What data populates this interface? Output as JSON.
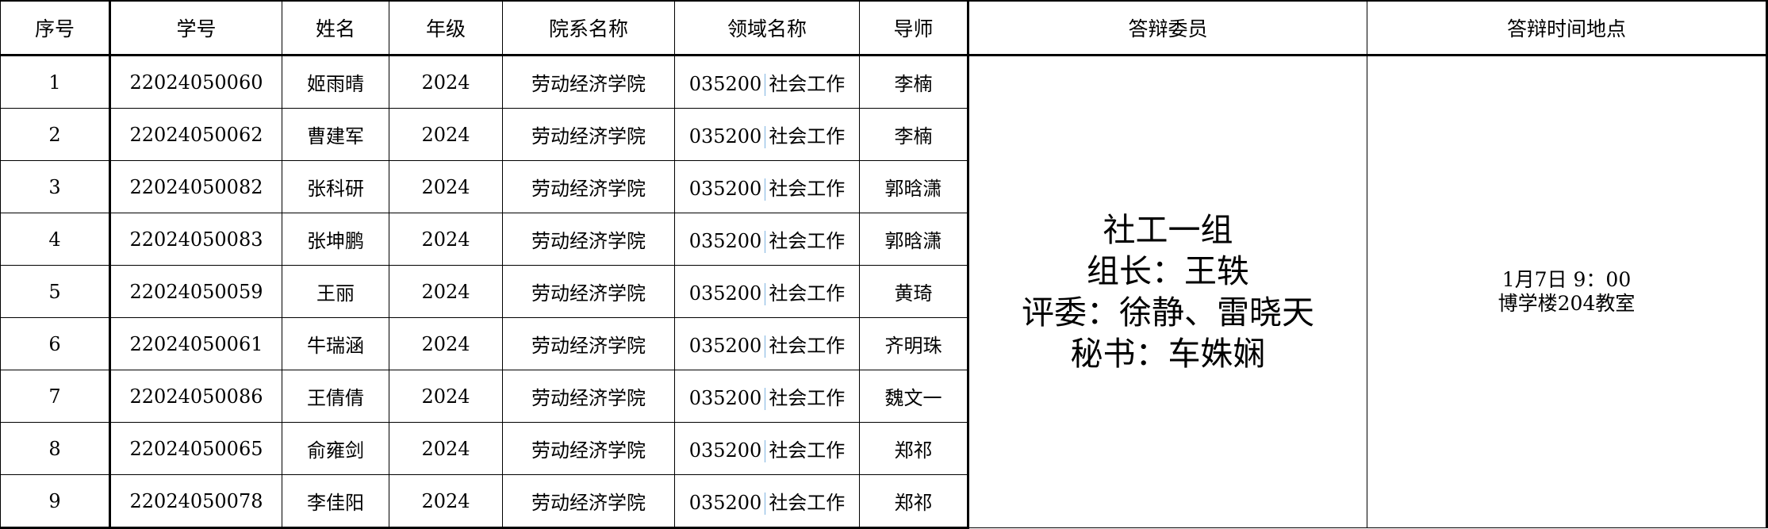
{
  "headers": [
    "序号",
    "学号",
    "姓名",
    "年级",
    "院系名称",
    "领域名称",
    "导师",
    "答辩委员",
    "答辩时间地点"
  ],
  "rows": [
    {
      "no": "1",
      "id": "22024050060",
      "name": "姬雨晴",
      "grade": "2024",
      "dept": "劳动经济学院",
      "field_code": "035200",
      "field_name": "社会工作",
      "advisor": "李楠"
    },
    {
      "no": "2",
      "id": "22024050062",
      "name": "曹建军",
      "grade": "2024",
      "dept": "劳动经济学院",
      "field_code": "035200",
      "field_name": "社会工作",
      "advisor": "李楠"
    },
    {
      "no": "3",
      "id": "22024050082",
      "name": "张科研",
      "grade": "2024",
      "dept": "劳动经济学院",
      "field_code": "035200",
      "field_name": "社会工作",
      "advisor": "郭晗潇"
    },
    {
      "no": "4",
      "id": "22024050083",
      "name": "张坤鹏",
      "grade": "2024",
      "dept": "劳动经济学院",
      "field_code": "035200",
      "field_name": "社会工作",
      "advisor": "郭晗潇"
    },
    {
      "no": "5",
      "id": "22024050059",
      "name": "王丽",
      "grade": "2024",
      "dept": "劳动经济学院",
      "field_code": "035200",
      "field_name": "社会工作",
      "advisor": "黄琦"
    },
    {
      "no": "6",
      "id": "22024050061",
      "name": "牛瑞涵",
      "grade": "2024",
      "dept": "劳动经济学院",
      "field_code": "035200",
      "field_name": "社会工作",
      "advisor": "齐明珠"
    },
    {
      "no": "7",
      "id": "22024050086",
      "name": "王倩倩",
      "grade": "2024",
      "dept": "劳动经济学院",
      "field_code": "035200",
      "field_name": "社会工作",
      "advisor": "魏文一"
    },
    {
      "no": "8",
      "id": "22024050065",
      "name": "俞雍剑",
      "grade": "2024",
      "dept": "劳动经济学院",
      "field_code": "035200",
      "field_name": "社会工作",
      "advisor": "郑祁"
    },
    {
      "no": "9",
      "id": "22024050078",
      "name": "李佳阳",
      "grade": "2024",
      "dept": "劳动经济学院",
      "field_code": "035200",
      "field_name": "社会工作",
      "advisor": "郑祁"
    }
  ],
  "committee": [
    "社工一组",
    "组长：王轶",
    "评委：徐静、雷晓天",
    "秘书：车姝娴"
  ],
  "time_place": [
    "1月7日 9：00",
    "博学楼204教室"
  ],
  "colors": {
    "separator": "#7fb3e0"
  }
}
